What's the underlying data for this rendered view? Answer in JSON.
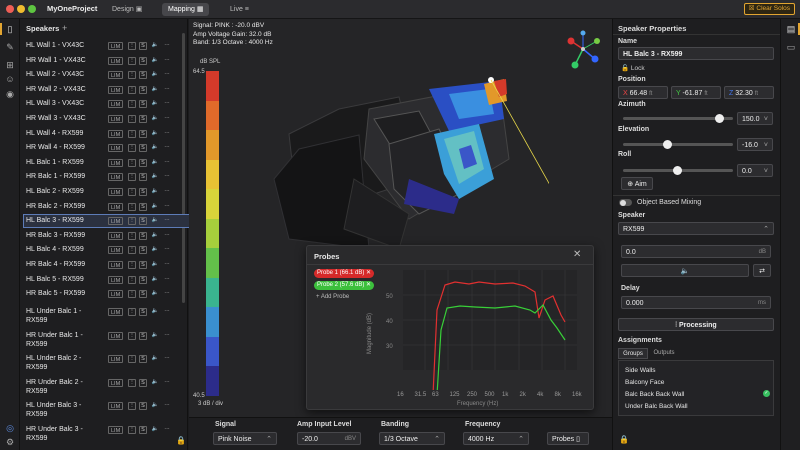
{
  "titlebar": {
    "project": "MyOneProject",
    "tabs": [
      {
        "label": "Design"
      },
      {
        "label": "Mapping"
      },
      {
        "label": "Live"
      }
    ],
    "clear_solos": "Clear Solos"
  },
  "speakers_panel": {
    "title": "Speakers",
    "lim": "LIM",
    "s": "S",
    "items": [
      "HL Wall 1 - VX43C",
      "HR Wall 1 - VX43C",
      "HL Wall 2 - VX43C",
      "HR Wall 2 - VX43C",
      "HL Wall 3 - VX43C",
      "HR Wall 3 - VX43C",
      "HL Wall 4 - RX599",
      "HR Wall 4 - RX599",
      "HL Balc 1 - RX599",
      "HR Balc 1 - RX599",
      "HL Balc 2 - RX599",
      "HR Balc 2 - RX599",
      "HL Balc 3 - RX599",
      "HR Balc 3 - RX599",
      "HL Balc 4 - RX599",
      "HR Balc 4 - RX599",
      "HL Balc 5 - RX599",
      "HR Balc 5 - RX599"
    ],
    "multi_items": [
      [
        "HL Under Balc 1 -",
        "RX599"
      ],
      [
        "HR Under Balc 1 -",
        "RX599"
      ],
      [
        "HL Under Balc 2 -",
        "RX599"
      ],
      [
        "HR Under Balc 2 -",
        "RX599"
      ],
      [
        "HL Under Balc 3 -",
        "RX599"
      ],
      [
        "HR Under Balc 3 -",
        "RX599"
      ]
    ]
  },
  "viewport": {
    "info": [
      "Signal: PINK : -20.0 dBV",
      "Amp Voltage Gain: 32.0 dB",
      "Band: 1/3 Octave : 4000 Hz"
    ],
    "meter": {
      "unit": "dB SPL",
      "top": "64.5",
      "bottom": "40.5",
      "step": "3 dB / div"
    },
    "meter_colors": [
      "#d43a2a",
      "#e06a2a",
      "#e2982a",
      "#e8c234",
      "#d8d43a",
      "#a6cf3c",
      "#63c04a",
      "#3ab48f",
      "#3a8fcf",
      "#3a56c8",
      "#2c2c8a"
    ]
  },
  "probes_dialog": {
    "title": "Probes",
    "probe1": "Probe 1 (66.1 dB)",
    "probe2": "Probe 2 (57.6 dB)",
    "add": "Add Probe",
    "y_label": "Magnitude (dB)",
    "x_label": "Frequency (Hz)",
    "y_ticks": [
      "50",
      "40",
      "30"
    ],
    "x_ticks": [
      "16",
      "31.5",
      "63",
      "125",
      "250",
      "500",
      "1k",
      "2k",
      "4k",
      "8k",
      "16k"
    ]
  },
  "bottom": {
    "signal_label": "Signal",
    "signal_value": "Pink Noise",
    "amp_label": "Amp Input Level",
    "amp_value": "-20.0",
    "amp_unit": "dBV",
    "banding_label": "Banding",
    "banding_value": "1/3 Octave",
    "freq_label": "Frequency",
    "freq_value": "4000 Hz",
    "probes_btn": "Probes"
  },
  "props": {
    "title": "Speaker Properties",
    "name_label": "Name",
    "name_value": "HL Balc 3 - RX599",
    "lock": "Lock",
    "position_label": "Position",
    "x": "66.48",
    "y": "-61.87",
    "z": "32.30",
    "unit": "ft",
    "azimuth_label": "Azimuth",
    "azimuth_value": "150.0",
    "elevation_label": "Elevation",
    "elevation_value": "-16.0",
    "roll_label": "Roll",
    "roll_value": "0.0",
    "aim": "Aim",
    "obm": "Object Based Mixing",
    "speaker_label": "Speaker",
    "speaker_value": "RX599",
    "gain_value": "0.0",
    "gain_unit": "dB",
    "delay_label": "Delay",
    "delay_value": "0.000",
    "delay_unit": "ms",
    "processing": "Processing",
    "assignments": "Assignments",
    "tabs": [
      "Groups",
      "Outputs"
    ],
    "groups": [
      "Side Walls",
      "Balcony Face",
      "Balc Back Back Wall",
      "Under Balc Back Wall"
    ]
  }
}
